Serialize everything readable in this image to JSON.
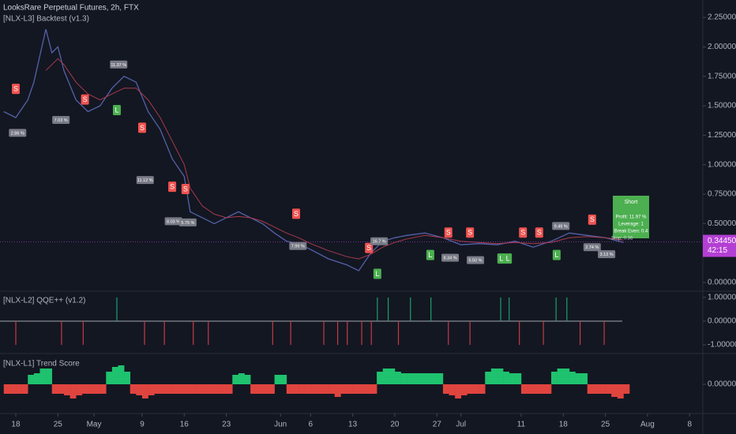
{
  "chart_data": [
    {
      "type": "line",
      "title": "LooksRare Perpetual Futures, 2h, FTX",
      "subtitle": "[NLX-L3] Backtest (v1.3)",
      "x": [
        -2,
        0,
        2,
        3,
        5,
        6,
        7,
        8,
        10,
        12,
        14,
        16,
        18,
        20,
        22,
        24,
        26,
        28,
        29,
        31,
        33,
        35,
        37,
        39,
        41,
        43,
        45,
        47,
        49,
        52,
        55,
        57,
        59,
        61,
        63,
        65,
        68,
        71,
        74,
        77,
        80,
        83,
        86,
        89,
        92,
        95,
        98,
        101
      ],
      "series": [
        {
          "color": "#5561a8",
          "values": [
            1.45,
            1.4,
            1.55,
            1.7,
            2.15,
            1.95,
            2.0,
            1.8,
            1.55,
            1.45,
            1.5,
            1.65,
            1.75,
            1.7,
            1.45,
            1.3,
            1.05,
            0.9,
            0.6,
            0.55,
            0.5,
            0.55,
            0.6,
            0.55,
            0.5,
            0.42,
            0.35,
            0.33,
            0.28,
            0.2,
            0.15,
            0.1,
            0.25,
            0.35,
            0.38,
            0.4,
            0.42,
            0.38,
            0.32,
            0.33,
            0.32,
            0.35,
            0.3,
            0.35,
            0.42,
            0.4,
            0.38,
            0.34
          ]
        },
        {
          "color": "#a83a4c",
          "values": [
            null,
            null,
            null,
            null,
            1.8,
            1.85,
            1.9,
            1.85,
            1.7,
            1.6,
            1.55,
            1.6,
            1.65,
            1.65,
            1.55,
            1.4,
            1.2,
            1.0,
            0.8,
            0.65,
            0.58,
            0.55,
            0.56,
            0.55,
            0.52,
            0.47,
            0.42,
            0.38,
            0.33,
            0.27,
            0.22,
            0.2,
            0.24,
            0.3,
            0.34,
            0.37,
            0.4,
            0.38,
            0.35,
            0.34,
            0.33,
            0.34,
            0.33,
            0.34,
            0.38,
            0.39,
            0.38,
            0.36
          ]
        }
      ],
      "xlim": [
        -2.625,
        114.2
      ],
      "ylim": [
        -0.067,
        2.398
      ],
      "yticks": [
        {
          "value": 2.25,
          "label": "2.25000"
        },
        {
          "value": 2.0,
          "label": "2.00000"
        },
        {
          "value": 1.75,
          "label": "1.75000"
        },
        {
          "value": 1.5,
          "label": "1.50000"
        },
        {
          "value": 1.25,
          "label": "1.25000"
        },
        {
          "value": 1.0,
          "label": "1.00000"
        },
        {
          "value": 0.75,
          "label": "0.75000"
        },
        {
          "value": 0.5,
          "label": "0.50000"
        },
        {
          "value": 0.25,
          "label": "0.25000"
        },
        {
          "value": 0,
          "label": "0.00000"
        }
      ],
      "last_price": {
        "value": 0.3445,
        "label": "0.34450"
      },
      "countdown": "42:15",
      "signals": [
        {
          "text": "S",
          "x": 0,
          "y": 1.64,
          "color": "#f05350"
        },
        {
          "text": "S",
          "x": 11.5,
          "y": 1.55,
          "color": "#f05350"
        },
        {
          "text": "S",
          "x": 21.0,
          "y": 1.31,
          "color": "#f05350"
        },
        {
          "text": "S",
          "x": 26.0,
          "y": 0.81,
          "color": "#f05350"
        },
        {
          "text": "S",
          "x": 28.2,
          "y": 0.79,
          "color": "#f05350"
        },
        {
          "text": "S",
          "x": 46.6,
          "y": 0.58,
          "color": "#f05350"
        },
        {
          "text": "S",
          "x": 58.7,
          "y": 0.29,
          "color": "#f05350"
        },
        {
          "text": "S",
          "x": 71.9,
          "y": 0.42,
          "color": "#f05350"
        },
        {
          "text": "S",
          "x": 75.5,
          "y": 0.42,
          "color": "#f05350"
        },
        {
          "text": "S",
          "x": 84.3,
          "y": 0.42,
          "color": "#f05350"
        },
        {
          "text": "S",
          "x": 87.0,
          "y": 0.42,
          "color": "#f05350"
        },
        {
          "text": "S",
          "x": 95.8,
          "y": 0.53,
          "color": "#f05350"
        },
        {
          "text": "L",
          "x": 16.8,
          "y": 1.46,
          "color": "#4caf50"
        },
        {
          "text": "L",
          "x": 60.1,
          "y": 0.07,
          "color": "#4caf50"
        },
        {
          "text": "L",
          "x": 68.9,
          "y": 0.23,
          "color": "#4caf50"
        },
        {
          "text": "L",
          "x": 80.7,
          "y": 0.2,
          "color": "#4caf50"
        },
        {
          "text": "L",
          "x": 81.8,
          "y": 0.2,
          "color": "#4caf50"
        },
        {
          "text": "L",
          "x": 89.9,
          "y": 0.23,
          "color": "#4caf50"
        }
      ],
      "trade_labels": [
        {
          "text": "2.86 %",
          "x": 0.3,
          "y": 1.27
        },
        {
          "text": "7.03 %",
          "x": 7.5,
          "y": 1.38
        },
        {
          "text": "11.37 %",
          "x": 17.1,
          "y": 1.85
        },
        {
          "text": "11.12 %",
          "x": 21.5,
          "y": 0.87
        },
        {
          "text": "8.03 %",
          "x": 26.2,
          "y": 0.52
        },
        {
          "text": "5.75 %",
          "x": 28.6,
          "y": 0.51
        },
        {
          "text": "7.99 %",
          "x": 46.9,
          "y": 0.31
        },
        {
          "text": "16.7 %",
          "x": 60.4,
          "y": 0.35
        },
        {
          "text": "8.34 %",
          "x": 72.2,
          "y": 0.21
        },
        {
          "text": "5.50 %",
          "x": 76.4,
          "y": 0.19
        },
        {
          "text": "9.49 %",
          "x": 90.6,
          "y": 0.48
        },
        {
          "text": "2.74 %",
          "x": 95.8,
          "y": 0.3
        },
        {
          "text": "3.13 %",
          "x": 98.2,
          "y": 0.24
        }
      ],
      "info_box": [
        "Short",
        "Profit: 11.97 %",
        "Leverage: 1",
        "Break Even: 0.4"
      ],
      "stop_label": "Stop: 0.36"
    },
    {
      "type": "bar",
      "title": "[NLX-L2] QQE++ (v1.2)",
      "x": [
        0,
        7.6,
        11.2,
        16.8,
        21.4,
        24.7,
        29.5,
        32,
        42.7,
        45.7,
        51.2,
        53.5,
        55.1,
        57.5,
        59.1,
        60.1,
        61.9,
        63.6,
        65.6,
        69,
        71.9,
        75.5,
        80.6,
        82,
        83.7,
        87.7,
        89.8,
        91.6,
        93.8,
        97.8
      ],
      "values": [
        -1,
        -1,
        -1,
        1,
        -1,
        -1,
        -1,
        -1,
        -1,
        -1,
        -1,
        -1,
        -1,
        -1,
        -1,
        1,
        1,
        -1,
        1,
        1,
        -1,
        -1,
        1,
        1,
        -1,
        -1,
        1,
        1,
        -1,
        -1
      ],
      "up_color": "#1e9e6a",
      "down_color": "#c43b45",
      "ylim": [
        -1.33,
        1.23
      ],
      "yticks": [
        {
          "value": 1,
          "label": "1.00000"
        },
        {
          "value": 0,
          "label": "0.00000"
        },
        {
          "value": -1,
          "label": "-1.00000"
        }
      ]
    },
    {
      "type": "bar",
      "title": "[NLX-L1] Trend Score",
      "x": [
        -2,
        -1,
        0,
        1,
        2,
        3,
        4,
        5,
        6,
        7,
        8,
        9,
        10,
        11,
        12,
        13,
        14,
        15,
        16,
        17,
        18,
        19,
        20,
        21,
        22,
        23,
        24,
        25,
        26,
        27,
        28,
        29,
        30,
        31,
        32,
        33,
        34,
        35,
        36,
        37,
        38,
        39,
        40,
        41,
        42,
        43,
        44,
        45,
        46,
        47,
        48,
        49,
        50,
        51,
        52,
        53,
        54,
        55,
        56,
        57,
        58,
        59,
        60,
        61,
        62,
        63,
        64,
        65,
        66,
        67,
        68,
        69,
        70,
        71,
        72,
        73,
        74,
        75,
        76,
        77,
        78,
        79,
        80,
        81,
        82,
        83,
        84,
        85,
        86,
        87,
        88,
        89,
        90,
        91,
        92,
        93,
        94,
        95,
        96,
        97,
        98,
        99,
        100,
        101
      ],
      "values": [
        -0.6,
        -0.6,
        -0.6,
        -0.6,
        0.6,
        0.7,
        1.0,
        1.0,
        -0.6,
        -0.6,
        -0.7,
        -0.9,
        -0.7,
        -0.6,
        -0.6,
        -0.6,
        -0.6,
        0.8,
        1.1,
        1.2,
        0.8,
        -0.6,
        -0.7,
        -0.9,
        -0.7,
        -0.6,
        -0.6,
        -0.6,
        -0.6,
        -0.6,
        -0.6,
        -0.6,
        -0.6,
        -0.6,
        -0.6,
        -0.6,
        -0.6,
        -0.6,
        0.6,
        0.7,
        0.6,
        -0.6,
        -0.6,
        -0.6,
        -0.6,
        0.6,
        0.6,
        -0.6,
        -0.6,
        -0.6,
        -0.6,
        -0.6,
        -0.6,
        -0.6,
        -0.6,
        -0.8,
        -0.6,
        -0.6,
        -0.6,
        -0.6,
        -0.6,
        -0.6,
        0.8,
        1.0,
        1.0,
        0.8,
        0.7,
        0.7,
        0.7,
        0.7,
        0.7,
        0.7,
        0.7,
        -0.6,
        -0.7,
        -0.9,
        -0.7,
        -0.6,
        -0.6,
        -0.6,
        0.8,
        1.0,
        1.0,
        0.8,
        0.7,
        0.7,
        -0.6,
        -0.6,
        -0.6,
        -0.6,
        -0.6,
        0.8,
        1.0,
        1.0,
        0.8,
        0.7,
        0.7,
        -0.6,
        -0.6,
        -0.6,
        -0.6,
        -0.8,
        -0.9,
        -0.6
      ],
      "up_color": "#1fc26e",
      "down_color": "#e0443f",
      "ylim": [
        -1.8,
        1.9
      ],
      "yticks": [
        {
          "value": 0,
          "label": "0.00000"
        }
      ],
      "xticks": [
        {
          "value": 0,
          "label": "18"
        },
        {
          "value": 7,
          "label": "25"
        },
        {
          "value": 13,
          "label": "May"
        },
        {
          "value": 21,
          "label": "9"
        },
        {
          "value": 28,
          "label": "16"
        },
        {
          "value": 35,
          "label": "23"
        },
        {
          "value": 44,
          "label": "Jun"
        },
        {
          "value": 49,
          "label": "6"
        },
        {
          "value": 56,
          "label": "13"
        },
        {
          "value": 63,
          "label": "20"
        },
        {
          "value": 70,
          "label": "27"
        },
        {
          "value": 74,
          "label": "Jul"
        },
        {
          "value": 84,
          "label": "11"
        },
        {
          "value": 91,
          "label": "18"
        },
        {
          "value": 98,
          "label": "25"
        },
        {
          "value": 105,
          "label": "Aug"
        },
        {
          "value": 112,
          "label": "8"
        }
      ]
    }
  ]
}
